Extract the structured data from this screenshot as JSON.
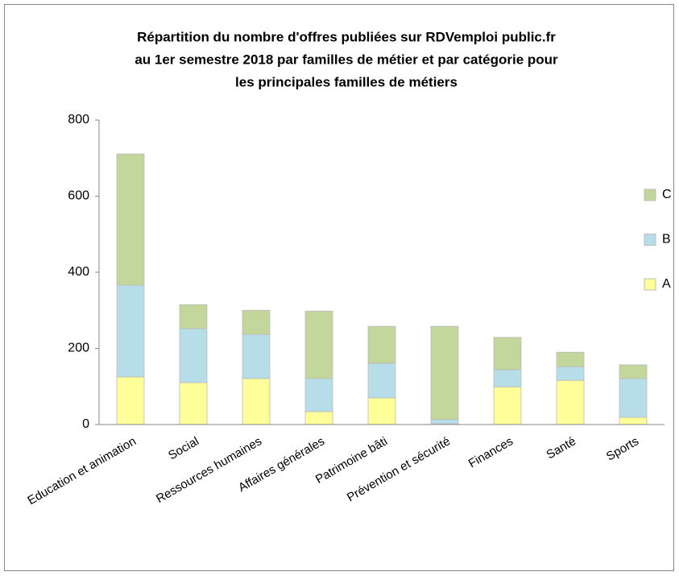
{
  "chart_data": {
    "type": "stacked_bar",
    "title": [
      "Répartition du nombre d'offres publiées sur RDVemploi public.fr",
      "au 1er semestre 2018 par familles de métier et par catégorie pour",
      "les principales familles de métiers"
    ],
    "categories": [
      "Education et animation",
      "Social",
      "Ressources humaines",
      "Affaires générales",
      "Patrimoine bâti",
      "Prévention et sécurité",
      "Finances",
      "Santé",
      "Sports"
    ],
    "series": [
      {
        "name": "A",
        "color": "#ffff99",
        "values": [
          125,
          110,
          121,
          34,
          70,
          2,
          99,
          116,
          19
        ]
      },
      {
        "name": "B",
        "color": "#b7dee8",
        "values": [
          241,
          142,
          116,
          87,
          91,
          11,
          45,
          36,
          102
        ]
      },
      {
        "name": "C",
        "color": "#c3d69b",
        "values": [
          345,
          63,
          63,
          177,
          97,
          245,
          85,
          38,
          36
        ]
      }
    ],
    "ylim": [
      0,
      800
    ],
    "yticks": [
      0,
      200,
      400,
      600,
      800
    ],
    "grid": false,
    "legend": "right"
  }
}
